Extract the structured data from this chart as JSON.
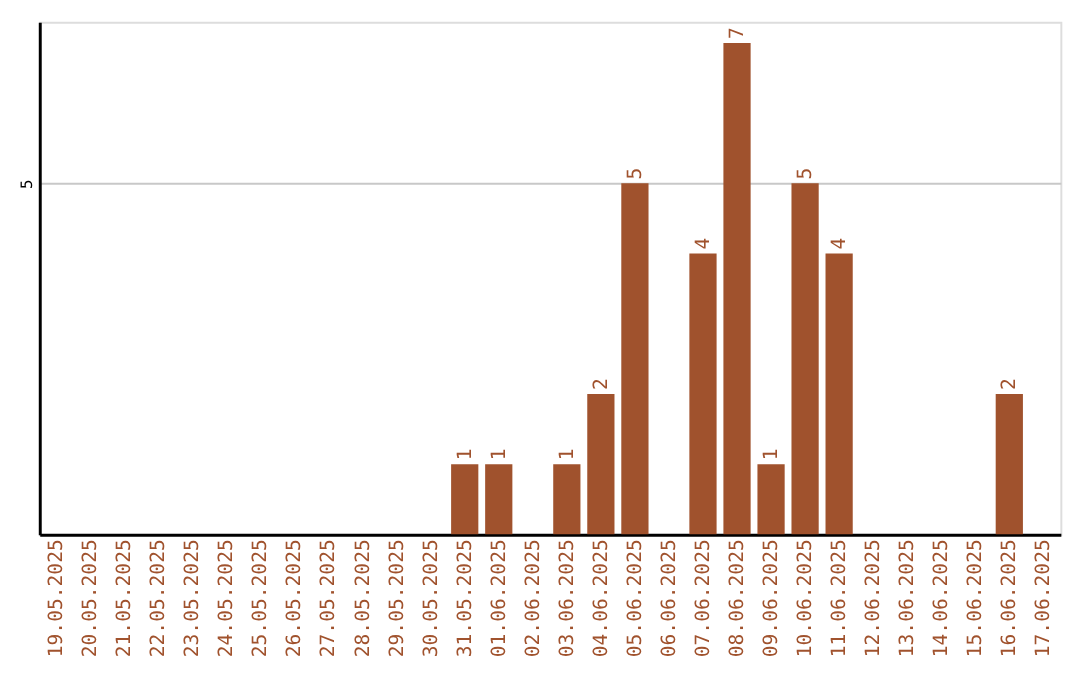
{
  "chart_data": {
    "type": "bar",
    "categories": [
      "19.05.2025",
      "20.05.2025",
      "21.05.2025",
      "22.05.2025",
      "23.05.2025",
      "24.05.2025",
      "25.05.2025",
      "26.05.2025",
      "27.05.2025",
      "28.05.2025",
      "29.05.2025",
      "30.05.2025",
      "31.05.2025",
      "01.06.2025",
      "02.06.2025",
      "03.06.2025",
      "04.06.2025",
      "05.06.2025",
      "06.06.2025",
      "07.06.2025",
      "08.06.2025",
      "09.06.2025",
      "10.06.2025",
      "11.06.2025",
      "12.06.2025",
      "13.06.2025",
      "14.06.2025",
      "15.06.2025",
      "16.06.2025",
      "17.06.2025"
    ],
    "values": [
      null,
      null,
      null,
      null,
      null,
      null,
      null,
      null,
      null,
      null,
      null,
      null,
      1,
      1,
      null,
      1,
      2,
      5,
      null,
      4,
      7,
      1,
      5,
      4,
      null,
      null,
      null,
      null,
      2,
      null
    ],
    "color": "#a0522d",
    "ylim": [
      0,
      7.3
    ],
    "yticks": [
      5
    ],
    "grid": "y",
    "data_labels": true
  }
}
